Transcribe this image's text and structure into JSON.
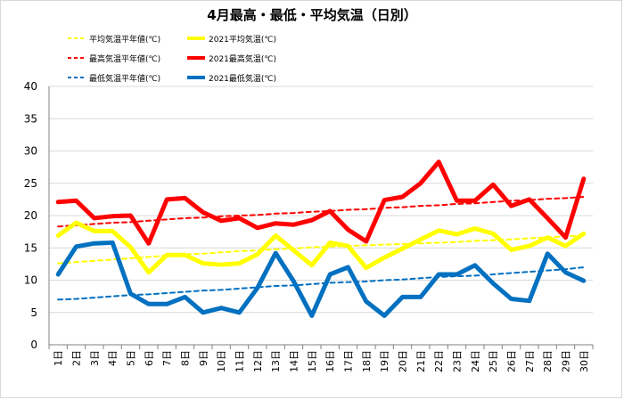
{
  "chart_data": {
    "type": "line",
    "title": "4月最高・最低・平均気温（日別）",
    "categories": [
      "1日",
      "2日",
      "3日",
      "4日",
      "5日",
      "6日",
      "7日",
      "8日",
      "9日",
      "10日",
      "11日",
      "12日",
      "13日",
      "14日",
      "15日",
      "16日",
      "17日",
      "18日",
      "19日",
      "20日",
      "21日",
      "22日",
      "23日",
      "24日",
      "25日",
      "26日",
      "27日",
      "28日",
      "29日",
      "30日"
    ],
    "ylim": [
      0,
      40
    ],
    "yticks": [
      0,
      5,
      10,
      15,
      20,
      25,
      30,
      35,
      40
    ],
    "grid": true,
    "legend_position": "top-left",
    "series": [
      {
        "name": "平均気温平年値(℃)",
        "color": "#ffff00",
        "style": "dashed",
        "values": [
          12.6,
          12.8,
          13.0,
          13.2,
          13.4,
          13.6,
          13.8,
          14.0,
          14.1,
          14.3,
          14.5,
          14.6,
          14.8,
          14.9,
          15.1,
          15.2,
          15.3,
          15.4,
          15.5,
          15.6,
          15.7,
          15.8,
          15.9,
          16.1,
          16.2,
          16.3,
          16.5,
          16.6,
          16.8,
          16.9
        ]
      },
      {
        "name": "2021平均気温(℃)",
        "color": "#ffff00",
        "style": "solid",
        "values": [
          16.9,
          18.9,
          17.6,
          17.6,
          15.1,
          11.2,
          13.9,
          13.9,
          12.6,
          12.4,
          12.6,
          14.0,
          16.9,
          14.6,
          12.3,
          15.8,
          15.3,
          11.9,
          13.5,
          14.9,
          16.3,
          17.7,
          17.1,
          18.0,
          17.2,
          14.7,
          15.3,
          16.6,
          15.3,
          17.2
        ]
      },
      {
        "name": "最高気温平年値(℃)",
        "color": "#ff0000",
        "style": "dashed",
        "values": [
          18.3,
          18.5,
          18.7,
          18.9,
          19.0,
          19.2,
          19.4,
          19.6,
          19.7,
          19.9,
          20.0,
          20.1,
          20.3,
          20.4,
          20.6,
          20.7,
          20.9,
          21.0,
          21.2,
          21.3,
          21.5,
          21.6,
          21.8,
          21.9,
          22.1,
          22.3,
          22.4,
          22.6,
          22.7,
          22.9
        ]
      },
      {
        "name": "2021最高気温(℃)",
        "color": "#ff0000",
        "style": "solid",
        "values": [
          22.1,
          22.3,
          19.6,
          19.9,
          20.0,
          15.7,
          22.5,
          22.7,
          20.5,
          19.2,
          19.6,
          18.1,
          18.8,
          18.6,
          19.3,
          20.7,
          17.8,
          16.0,
          22.4,
          22.9,
          25.0,
          28.3,
          22.3,
          22.3,
          24.8,
          21.5,
          22.5,
          19.6,
          16.6,
          25.7
        ]
      },
      {
        "name": "最低気温平年値(℃)",
        "color": "#0070c0",
        "style": "dashed",
        "values": [
          7.0,
          7.1,
          7.3,
          7.5,
          7.7,
          7.8,
          8.0,
          8.2,
          8.4,
          8.5,
          8.7,
          8.9,
          9.1,
          9.2,
          9.4,
          9.6,
          9.7,
          9.8,
          10.0,
          10.1,
          10.3,
          10.5,
          10.6,
          10.7,
          10.9,
          11.1,
          11.3,
          11.5,
          11.7,
          12.0
        ]
      },
      {
        "name": "2021最低気温(℃)",
        "color": "#0070c0",
        "style": "solid",
        "values": [
          10.9,
          15.2,
          15.7,
          15.8,
          7.9,
          6.3,
          6.3,
          7.4,
          5.0,
          5.7,
          5.0,
          8.8,
          14.2,
          9.8,
          4.5,
          10.9,
          12.0,
          6.7,
          4.5,
          7.4,
          7.4,
          10.9,
          10.9,
          12.3,
          9.5,
          7.1,
          6.8,
          14.1,
          11.2,
          9.9
        ]
      }
    ]
  }
}
